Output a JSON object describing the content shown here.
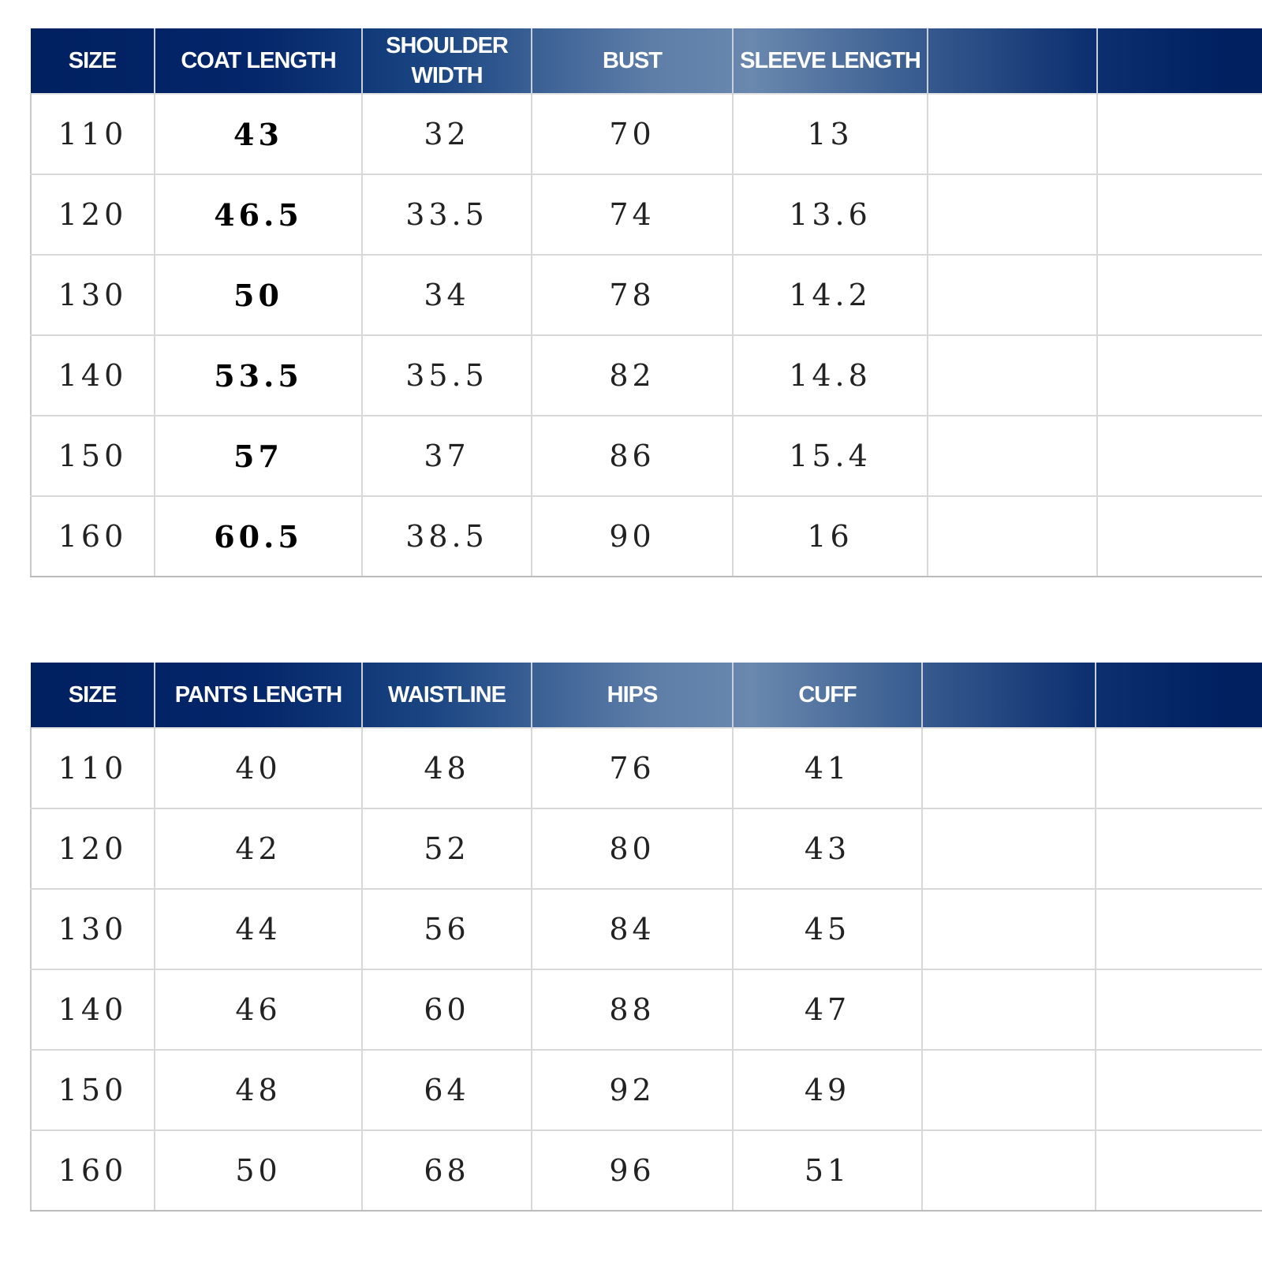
{
  "tables": [
    {
      "headers": [
        "SIZE",
        "COAT LENGTH",
        "SHOULDER WIDTH",
        "BUST",
        "SLEEVE LENGTH",
        "",
        ""
      ],
      "rows": [
        [
          "110",
          "43",
          "32",
          "70",
          "13",
          "",
          ""
        ],
        [
          "120",
          "46.5",
          "33.5",
          "74",
          "13.6",
          "",
          ""
        ],
        [
          "130",
          "50",
          "34",
          "78",
          "14.2",
          "",
          ""
        ],
        [
          "140",
          "53.5",
          "35.5",
          "82",
          "14.8",
          "",
          ""
        ],
        [
          "150",
          "57",
          "37",
          "86",
          "15.4",
          "",
          ""
        ],
        [
          "160",
          "60.5",
          "38.5",
          "90",
          "16",
          "",
          ""
        ]
      ]
    },
    {
      "headers": [
        "SIZE",
        "PANTS LENGTH",
        "WAISTLINE",
        "HIPS",
        "CUFF",
        "",
        ""
      ],
      "rows": [
        [
          "110",
          "40",
          "48",
          "76",
          "41",
          "",
          ""
        ],
        [
          "120",
          "42",
          "52",
          "80",
          "43",
          "",
          ""
        ],
        [
          "130",
          "44",
          "56",
          "84",
          "45",
          "",
          ""
        ],
        [
          "140",
          "46",
          "60",
          "88",
          "47",
          "",
          ""
        ],
        [
          "150",
          "48",
          "64",
          "92",
          "49",
          "",
          ""
        ],
        [
          "160",
          "50",
          "68",
          "96",
          "51",
          "",
          ""
        ]
      ]
    }
  ],
  "colors": {
    "header_dark": "#002060",
    "header_light": "#6a88ae",
    "grid": "#d8d8d8"
  }
}
